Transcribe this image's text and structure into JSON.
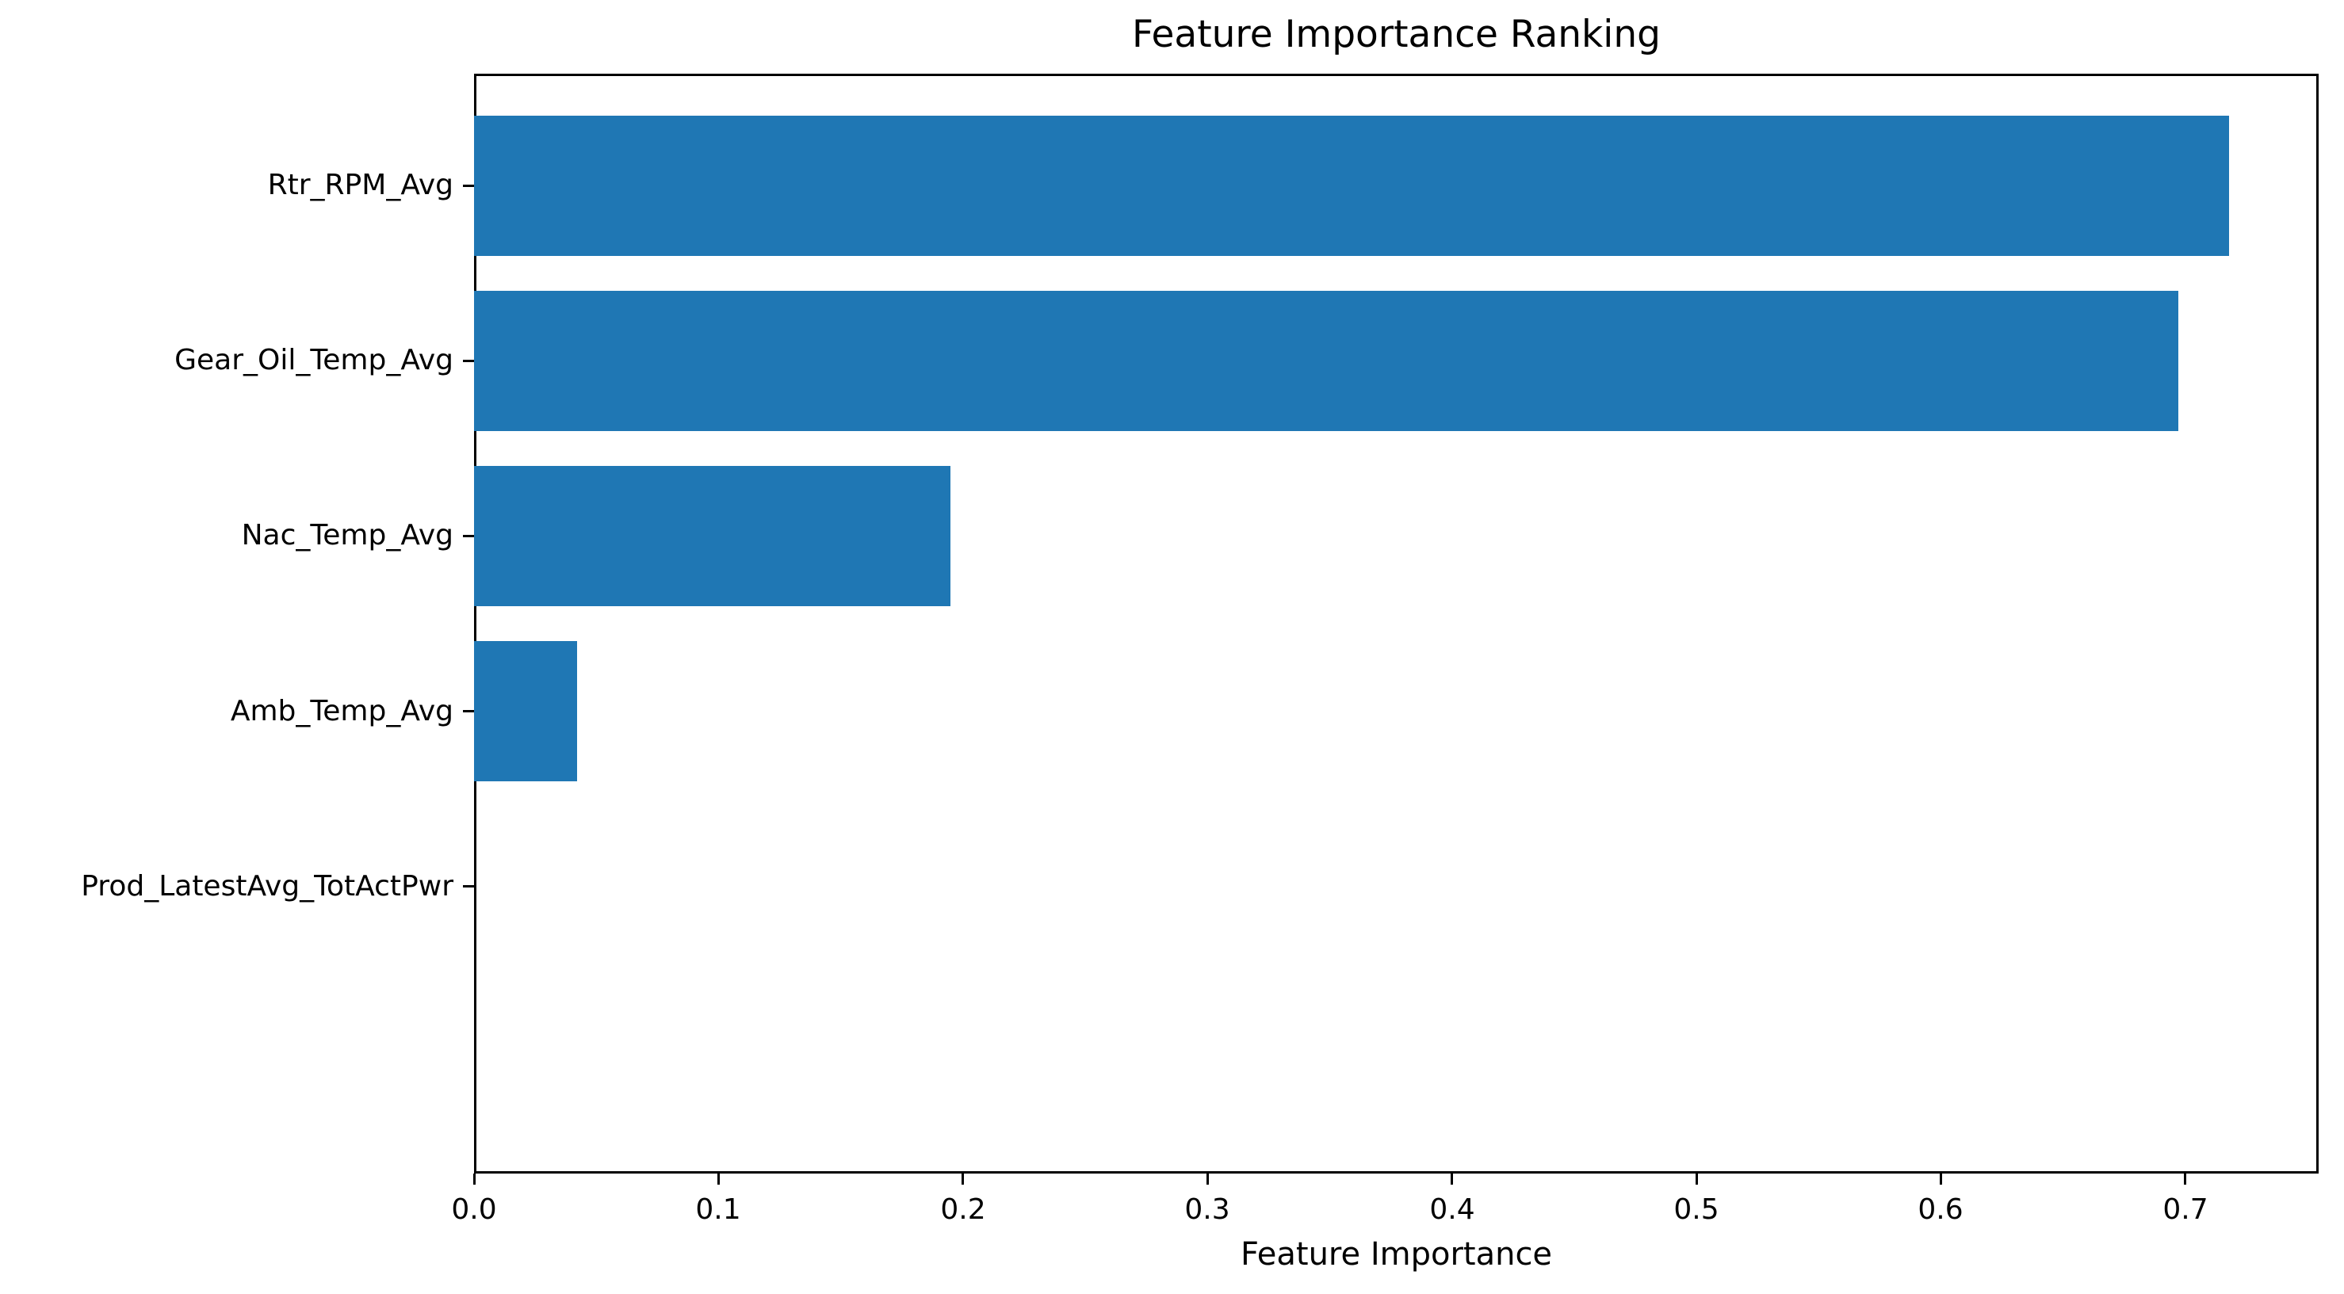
{
  "chart_data": {
    "type": "bar",
    "orientation": "horizontal",
    "title": "Feature Importance Ranking",
    "xlabel": "Feature Importance",
    "ylabel": "",
    "categories": [
      "Rtr_RPM_Avg",
      "Gear_Oil_Temp_Avg",
      "Nac_Temp_Avg",
      "Amb_Temp_Avg",
      "Prod_LatestAvg_TotActPwr"
    ],
    "values": [
      0.718,
      0.697,
      0.195,
      0.042,
      0.0
    ],
    "bar_color": "#1f77b4",
    "axis_color": "#000000",
    "background_color": "#ffffff",
    "xlim": [
      0.0,
      0.7545
    ],
    "xticks": [
      "0.0",
      "0.1",
      "0.2",
      "0.3",
      "0.4",
      "0.5",
      "0.6",
      "0.7"
    ],
    "grid": false,
    "legend": false
  }
}
